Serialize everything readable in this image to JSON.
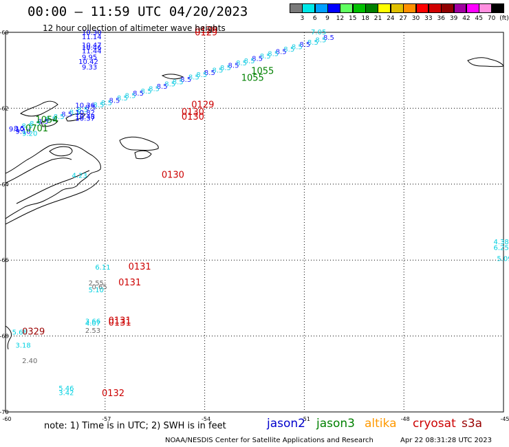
{
  "header": {
    "title": "00:00 – 11:59 UTC 04/20/2023",
    "subtitle": "12 hour collection of altimeter wave heights"
  },
  "color_scale": {
    "labels": [
      "3",
      "6",
      "9",
      "12",
      "15",
      "18",
      "21",
      "24",
      "27",
      "30",
      "33",
      "36",
      "39",
      "42",
      "45",
      "70",
      "(ft)"
    ],
    "colors": [
      "#7a7a7a",
      "#00e8e8",
      "#00a0ff",
      "#0000ff",
      "#60ff60",
      "#00c000",
      "#008000",
      "#ffff00",
      "#e0c000",
      "#ff9000",
      "#ff0000",
      "#d00000",
      "#900000",
      "#a000a0",
      "#ff00ff",
      "#ff90e0",
      "#000000"
    ]
  },
  "footer": {
    "note": "note: 1) Time is in UTC; 2) SWH is in feet",
    "credit": "NOAA/NESDIS Center for Satellite Applications and Research",
    "timestamp": "Apr 22 08:31:28 UTC 2023"
  },
  "legend": [
    {
      "label": "jason2",
      "color": "#0000cc"
    },
    {
      "label": "jason3",
      "color": "#008000"
    },
    {
      "label": "altika",
      "color": "#ff9900"
    },
    {
      "label": "cryosat",
      "color": "#cc0000"
    },
    {
      "label": "s3a",
      "color": "#990000"
    }
  ],
  "map": {
    "lat_labels": [
      "-60",
      "-62",
      "-64",
      "-66",
      "-68",
      "-70"
    ],
    "lon_labels": [
      "-60",
      "-57",
      "-54",
      "-51",
      "-48",
      "-45"
    ]
  },
  "chart_data": {
    "type": "scatter",
    "title": "12 hour collection of altimeter wave heights",
    "xlabel": "",
    "ylabel": "",
    "xlim": [
      -60,
      -45
    ],
    "ylim": [
      -70,
      -60
    ],
    "grid": true,
    "units": "ft",
    "time_labels": [
      {
        "text": "0129",
        "lon": -54.3,
        "lat": -60.08,
        "color": "#cc0000"
      },
      {
        "text": "0129",
        "lon": -54.3,
        "lat": -60.02,
        "color": "#cc0000"
      },
      {
        "text": "0129",
        "lon": -54.4,
        "lat": -61.98,
        "color": "#cc0000"
      },
      {
        "text": "0130",
        "lon": -54.7,
        "lat": -62.17,
        "color": "#cc0000"
      },
      {
        "text": "0130",
        "lon": -54.7,
        "lat": -62.3,
        "color": "#cc0000"
      },
      {
        "text": "0130",
        "lon": -55.3,
        "lat": -63.83,
        "color": "#cc0000"
      },
      {
        "text": "1055",
        "lon": -52.6,
        "lat": -61.1,
        "color": "#008000"
      },
      {
        "text": "1055",
        "lon": -52.9,
        "lat": -61.28,
        "color": "#008000"
      },
      {
        "text": "1054",
        "lon": -59.1,
        "lat": -62.38,
        "color": "#008000"
      },
      {
        "text": "0701",
        "lon": -59.4,
        "lat": -62.61,
        "color": "#008000"
      },
      {
        "text": "0131",
        "lon": -56.3,
        "lat": -66.25,
        "color": "#cc0000"
      },
      {
        "text": "0131",
        "lon": -56.6,
        "lat": -66.67,
        "color": "#cc0000"
      },
      {
        "text": "0131",
        "lon": -56.9,
        "lat": -67.67,
        "color": "#cc0000"
      },
      {
        "text": "0131",
        "lon": -56.9,
        "lat": -67.73,
        "color": "#cc0000"
      },
      {
        "text": "0329",
        "lon": -59.5,
        "lat": -67.96,
        "color": "#990000"
      },
      {
        "text": "0132",
        "lon": -57.1,
        "lat": -69.58,
        "color": "#cc0000"
      }
    ],
    "swh_labels": [
      {
        "text": "10.30",
        "lon": -57.7,
        "lat": -60.06,
        "color": "#0000ff"
      },
      {
        "text": "11.14",
        "lon": -57.7,
        "lat": -60.18,
        "color": "#0000ff"
      },
      {
        "text": "10.47",
        "lon": -57.7,
        "lat": -60.4,
        "color": "#0000ff"
      },
      {
        "text": "10.46",
        "lon": -57.7,
        "lat": -60.46,
        "color": "#0000ff"
      },
      {
        "text": "11.44",
        "lon": -57.7,
        "lat": -60.55,
        "color": "#0000ff"
      },
      {
        "text": "9.95",
        "lon": -57.7,
        "lat": -60.72,
        "color": "#0000ff"
      },
      {
        "text": "10.42",
        "lon": -57.8,
        "lat": -60.83,
        "color": "#0000ff"
      },
      {
        "text": "9.33",
        "lon": -57.7,
        "lat": -60.98,
        "color": "#0000ff"
      },
      {
        "text": "10.36",
        "lon": -57.9,
        "lat": -61.98,
        "color": "#0000ff"
      },
      {
        "text": "10.82",
        "lon": -57.9,
        "lat": -62.17,
        "color": "#0000ff"
      },
      {
        "text": "10.48",
        "lon": -57.9,
        "lat": -62.28,
        "color": "#0000ff"
      },
      {
        "text": "10.37",
        "lon": -57.9,
        "lat": -62.33,
        "color": "#0000ff"
      },
      {
        "text": "9.10",
        "lon": -59.9,
        "lat": -62.61,
        "color": "#0000ff"
      },
      {
        "text": "9.10",
        "lon": -59.7,
        "lat": -62.67,
        "color": "#0000ff"
      },
      {
        "text": "9.20",
        "lon": -59.5,
        "lat": -62.73,
        "color": "#00d0e0"
      },
      {
        "text": "7.05",
        "lon": -50.8,
        "lat": -60.05,
        "color": "#00d0e0"
      },
      {
        "text": "4.23",
        "lon": -58.0,
        "lat": -63.83,
        "color": "#00d0e0"
      },
      {
        "text": "4.38",
        "lon": -45.3,
        "lat": -65.58,
        "color": "#00d0e0"
      },
      {
        "text": "6.25",
        "lon": -45.3,
        "lat": -65.73,
        "color": "#00d0e0"
      },
      {
        "text": "5.09",
        "lon": -45.2,
        "lat": -66.02,
        "color": "#00d0e0"
      },
      {
        "text": "6.11",
        "lon": -57.3,
        "lat": -66.25,
        "color": "#00d0e0"
      },
      {
        "text": "2.55",
        "lon": -57.5,
        "lat": -66.67,
        "color": "#6a6a6a"
      },
      {
        "text": "0.65",
        "lon": -57.4,
        "lat": -66.77,
        "color": "#6a6a6a"
      },
      {
        "text": "5.10",
        "lon": -57.5,
        "lat": -66.85,
        "color": "#00d0e0"
      },
      {
        "text": "3.66",
        "lon": -57.6,
        "lat": -67.67,
        "color": "#00d0e0"
      },
      {
        "text": "4.07",
        "lon": -57.6,
        "lat": -67.73,
        "color": "#00d0e0"
      },
      {
        "text": "2.53",
        "lon": -57.6,
        "lat": -67.92,
        "color": "#6a6a6a"
      },
      {
        "text": "5.68",
        "lon": -59.8,
        "lat": -67.96,
        "color": "#00d0e0"
      },
      {
        "text": "3.18",
        "lon": -59.7,
        "lat": -68.31,
        "color": "#00d0e0"
      },
      {
        "text": "2.40",
        "lon": -59.5,
        "lat": -68.71,
        "color": "#6a6a6a"
      },
      {
        "text": "5.46",
        "lon": -58.4,
        "lat": -69.44,
        "color": "#00d0e0"
      },
      {
        "text": "3.42",
        "lon": -58.4,
        "lat": -69.56,
        "color": "#00d0e0"
      }
    ]
  }
}
